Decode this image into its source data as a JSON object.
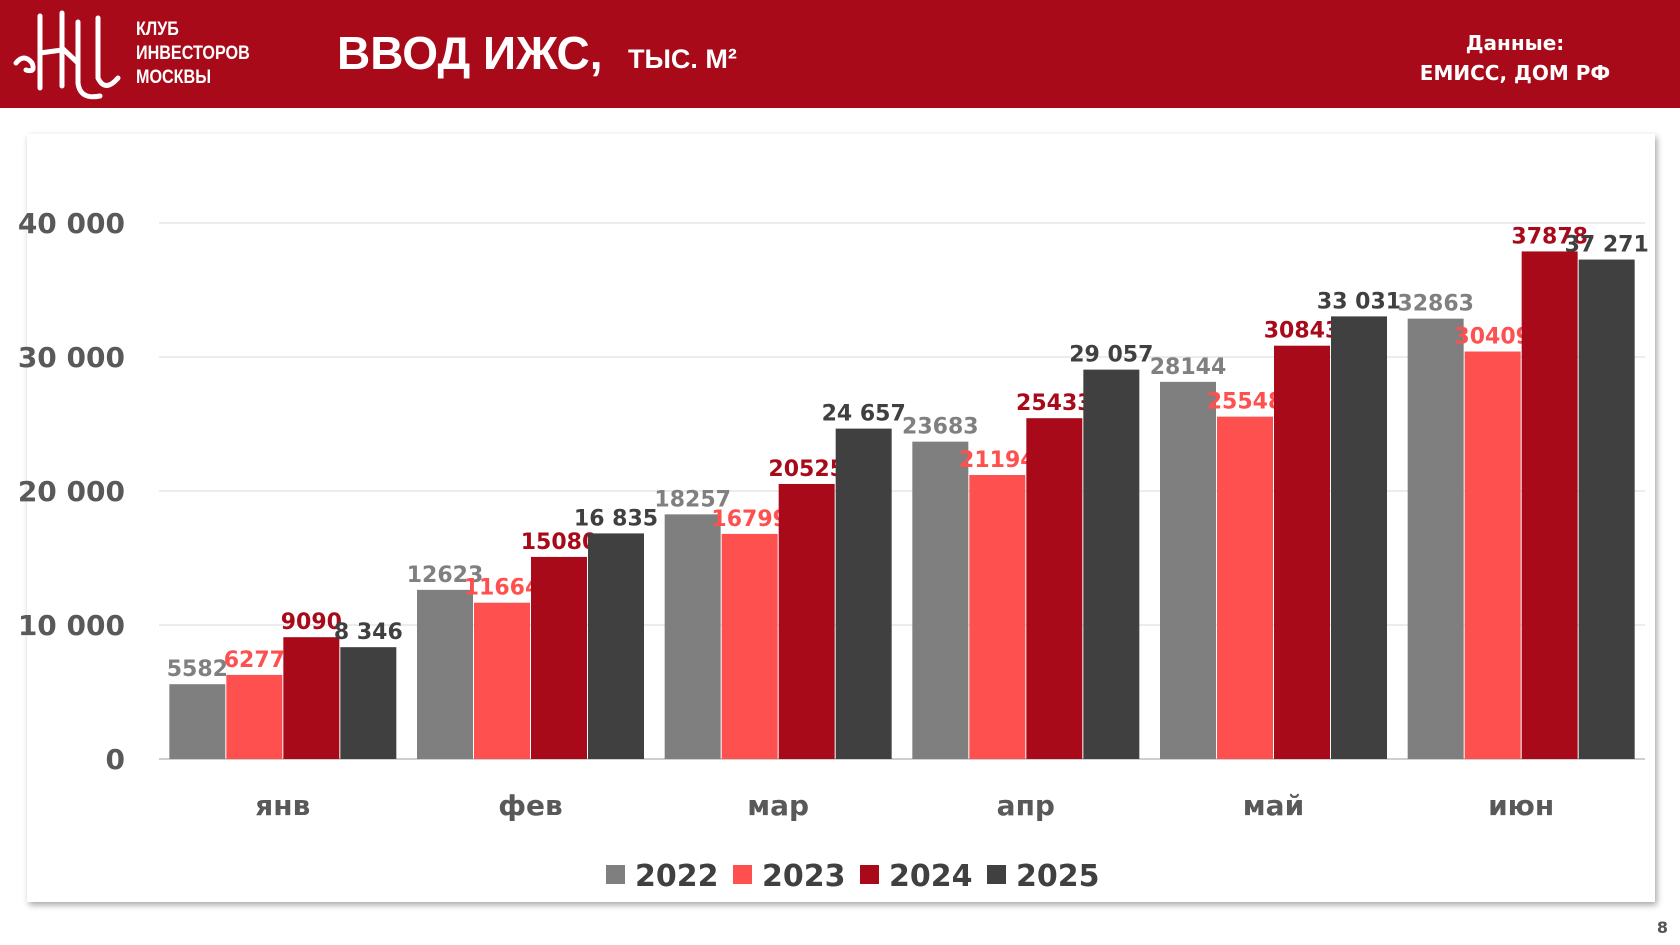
{
  "header": {
    "club_lines": [
      "КЛУБ",
      "ИНВЕСТОРОВ",
      "МОСКВЫ"
    ],
    "title": "ВВОД ИЖС,",
    "unit": "тыс. м²",
    "source_line1": "Данные:",
    "source_line2": "ЕМИСС, ДОМ РФ"
  },
  "page_number": "8",
  "chart_data": {
    "type": "bar",
    "title": "ВВОД ИЖС, тыс. м²",
    "categories": [
      "янв",
      "фев",
      "мар",
      "апр",
      "май",
      "июн"
    ],
    "ylim": [
      0,
      40000
    ],
    "yticks": [
      0,
      10000,
      20000,
      30000,
      40000
    ],
    "ytick_labels": [
      "0",
      "10 000",
      "20 000",
      "30 000",
      "40 000"
    ],
    "grid": true,
    "legend_position": "bottom",
    "series": [
      {
        "name": "2022",
        "color": "#7f7f7f",
        "values": [
          5582,
          12623,
          18257,
          23683,
          28144,
          32863
        ],
        "labels": [
          "5582",
          "12623",
          "18257",
          "23683",
          "28144",
          "32863"
        ]
      },
      {
        "name": "2023",
        "color": "#ff5050",
        "values": [
          6277,
          11664,
          16799,
          21194,
          25548,
          30409
        ],
        "labels": [
          "6277",
          "11664",
          "16799",
          "21194",
          "25548",
          "30409"
        ]
      },
      {
        "name": "2024",
        "color": "#a80a1a",
        "values": [
          9090,
          15080,
          20525,
          25433,
          30843,
          37878
        ],
        "labels": [
          "9090",
          "15080",
          "20525",
          "25433",
          "30843",
          "37878"
        ]
      },
      {
        "name": "2025",
        "color": "#404040",
        "values": [
          8346,
          16835,
          24657,
          29057,
          33031,
          37271
        ],
        "labels": [
          "8 346",
          "16 835",
          "24 657",
          "29 057",
          "33 031",
          "37 271"
        ]
      }
    ]
  }
}
